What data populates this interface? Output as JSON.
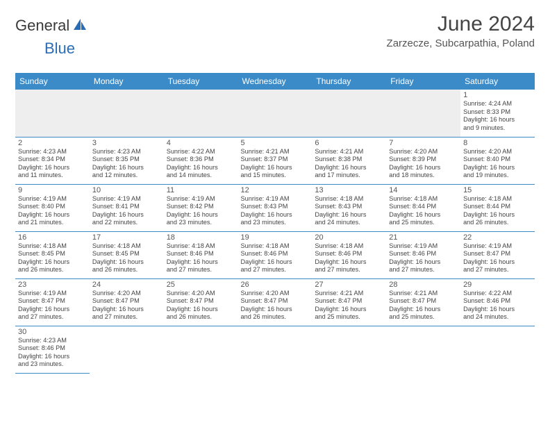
{
  "brand": {
    "part1": "General",
    "part2": "Blue"
  },
  "title": "June 2024",
  "location": "Zarzecze, Subcarpathia, Poland",
  "colors": {
    "header_bg": "#3b8bc9",
    "header_fg": "#ffffff",
    "border": "#3b8bc9",
    "empty_row_bg": "#eeeeee",
    "brand_blue": "#2a6db5"
  },
  "daylabels": [
    "Sunday",
    "Monday",
    "Tuesday",
    "Wednesday",
    "Thursday",
    "Friday",
    "Saturday"
  ],
  "weeks": [
    [
      null,
      null,
      null,
      null,
      null,
      null,
      {
        "n": "1",
        "sr": "Sunrise: 4:24 AM",
        "ss": "Sunset: 8:33 PM",
        "d1": "Daylight: 16 hours",
        "d2": "and 9 minutes."
      }
    ],
    [
      {
        "n": "2",
        "sr": "Sunrise: 4:23 AM",
        "ss": "Sunset: 8:34 PM",
        "d1": "Daylight: 16 hours",
        "d2": "and 11 minutes."
      },
      {
        "n": "3",
        "sr": "Sunrise: 4:23 AM",
        "ss": "Sunset: 8:35 PM",
        "d1": "Daylight: 16 hours",
        "d2": "and 12 minutes."
      },
      {
        "n": "4",
        "sr": "Sunrise: 4:22 AM",
        "ss": "Sunset: 8:36 PM",
        "d1": "Daylight: 16 hours",
        "d2": "and 14 minutes."
      },
      {
        "n": "5",
        "sr": "Sunrise: 4:21 AM",
        "ss": "Sunset: 8:37 PM",
        "d1": "Daylight: 16 hours",
        "d2": "and 15 minutes."
      },
      {
        "n": "6",
        "sr": "Sunrise: 4:21 AM",
        "ss": "Sunset: 8:38 PM",
        "d1": "Daylight: 16 hours",
        "d2": "and 17 minutes."
      },
      {
        "n": "7",
        "sr": "Sunrise: 4:20 AM",
        "ss": "Sunset: 8:39 PM",
        "d1": "Daylight: 16 hours",
        "d2": "and 18 minutes."
      },
      {
        "n": "8",
        "sr": "Sunrise: 4:20 AM",
        "ss": "Sunset: 8:40 PM",
        "d1": "Daylight: 16 hours",
        "d2": "and 19 minutes."
      }
    ],
    [
      {
        "n": "9",
        "sr": "Sunrise: 4:19 AM",
        "ss": "Sunset: 8:40 PM",
        "d1": "Daylight: 16 hours",
        "d2": "and 21 minutes."
      },
      {
        "n": "10",
        "sr": "Sunrise: 4:19 AM",
        "ss": "Sunset: 8:41 PM",
        "d1": "Daylight: 16 hours",
        "d2": "and 22 minutes."
      },
      {
        "n": "11",
        "sr": "Sunrise: 4:19 AM",
        "ss": "Sunset: 8:42 PM",
        "d1": "Daylight: 16 hours",
        "d2": "and 23 minutes."
      },
      {
        "n": "12",
        "sr": "Sunrise: 4:19 AM",
        "ss": "Sunset: 8:43 PM",
        "d1": "Daylight: 16 hours",
        "d2": "and 23 minutes."
      },
      {
        "n": "13",
        "sr": "Sunrise: 4:18 AM",
        "ss": "Sunset: 8:43 PM",
        "d1": "Daylight: 16 hours",
        "d2": "and 24 minutes."
      },
      {
        "n": "14",
        "sr": "Sunrise: 4:18 AM",
        "ss": "Sunset: 8:44 PM",
        "d1": "Daylight: 16 hours",
        "d2": "and 25 minutes."
      },
      {
        "n": "15",
        "sr": "Sunrise: 4:18 AM",
        "ss": "Sunset: 8:44 PM",
        "d1": "Daylight: 16 hours",
        "d2": "and 26 minutes."
      }
    ],
    [
      {
        "n": "16",
        "sr": "Sunrise: 4:18 AM",
        "ss": "Sunset: 8:45 PM",
        "d1": "Daylight: 16 hours",
        "d2": "and 26 minutes."
      },
      {
        "n": "17",
        "sr": "Sunrise: 4:18 AM",
        "ss": "Sunset: 8:45 PM",
        "d1": "Daylight: 16 hours",
        "d2": "and 26 minutes."
      },
      {
        "n": "18",
        "sr": "Sunrise: 4:18 AM",
        "ss": "Sunset: 8:46 PM",
        "d1": "Daylight: 16 hours",
        "d2": "and 27 minutes."
      },
      {
        "n": "19",
        "sr": "Sunrise: 4:18 AM",
        "ss": "Sunset: 8:46 PM",
        "d1": "Daylight: 16 hours",
        "d2": "and 27 minutes."
      },
      {
        "n": "20",
        "sr": "Sunrise: 4:18 AM",
        "ss": "Sunset: 8:46 PM",
        "d1": "Daylight: 16 hours",
        "d2": "and 27 minutes."
      },
      {
        "n": "21",
        "sr": "Sunrise: 4:19 AM",
        "ss": "Sunset: 8:46 PM",
        "d1": "Daylight: 16 hours",
        "d2": "and 27 minutes."
      },
      {
        "n": "22",
        "sr": "Sunrise: 4:19 AM",
        "ss": "Sunset: 8:47 PM",
        "d1": "Daylight: 16 hours",
        "d2": "and 27 minutes."
      }
    ],
    [
      {
        "n": "23",
        "sr": "Sunrise: 4:19 AM",
        "ss": "Sunset: 8:47 PM",
        "d1": "Daylight: 16 hours",
        "d2": "and 27 minutes."
      },
      {
        "n": "24",
        "sr": "Sunrise: 4:20 AM",
        "ss": "Sunset: 8:47 PM",
        "d1": "Daylight: 16 hours",
        "d2": "and 27 minutes."
      },
      {
        "n": "25",
        "sr": "Sunrise: 4:20 AM",
        "ss": "Sunset: 8:47 PM",
        "d1": "Daylight: 16 hours",
        "d2": "and 26 minutes."
      },
      {
        "n": "26",
        "sr": "Sunrise: 4:20 AM",
        "ss": "Sunset: 8:47 PM",
        "d1": "Daylight: 16 hours",
        "d2": "and 26 minutes."
      },
      {
        "n": "27",
        "sr": "Sunrise: 4:21 AM",
        "ss": "Sunset: 8:47 PM",
        "d1": "Daylight: 16 hours",
        "d2": "and 25 minutes."
      },
      {
        "n": "28",
        "sr": "Sunrise: 4:21 AM",
        "ss": "Sunset: 8:47 PM",
        "d1": "Daylight: 16 hours",
        "d2": "and 25 minutes."
      },
      {
        "n": "29",
        "sr": "Sunrise: 4:22 AM",
        "ss": "Sunset: 8:46 PM",
        "d1": "Daylight: 16 hours",
        "d2": "and 24 minutes."
      }
    ],
    [
      {
        "n": "30",
        "sr": "Sunrise: 4:23 AM",
        "ss": "Sunset: 8:46 PM",
        "d1": "Daylight: 16 hours",
        "d2": "and 23 minutes."
      },
      null,
      null,
      null,
      null,
      null,
      null
    ]
  ]
}
